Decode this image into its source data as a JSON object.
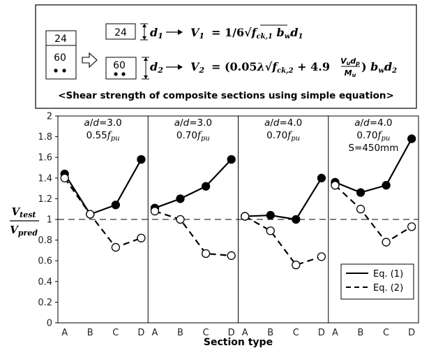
{
  "header_box": {
    "left_blocks": {
      "top": "24",
      "bottom": "60"
    },
    "row1": {
      "block": "24",
      "depth_symbol": "d",
      "depth_index": "1",
      "eq_lhs": "V",
      "eq_lhs_index": "1",
      "formula_text": "= 1/6√f_ck,1 b_w d_1"
    },
    "row2": {
      "block": "60",
      "depth_symbol": "d",
      "depth_index": "2",
      "eq_lhs": "V",
      "eq_lhs_index": "2",
      "formula_text": "= (0.05λ√f_ck,2 + 4.9 V_u d_p / M_u) b_w d_2"
    },
    "caption": "<Shear strength of composite sections using simple equation>"
  },
  "chart_data": {
    "type": "line",
    "categories": [
      "A",
      "B",
      "C",
      "D"
    ],
    "xlabel": "Section type",
    "ylabel": "V_test / V_pred",
    "ylim": [
      0,
      2
    ],
    "yticks": [
      "0",
      "0.2",
      "0.4",
      "0.6",
      "0.8",
      "1",
      "1.2",
      "1.4",
      "1.6",
      "1.8",
      "2"
    ],
    "reference_line": 1.0,
    "legend": {
      "placement": "bottom-right",
      "entries": [
        "Eq. (1)",
        "Eq. (2)"
      ]
    },
    "panels": [
      {
        "label_line1": "a/d=3.0",
        "label_line2": "0.55f_pu",
        "label_line3": "",
        "series": [
          {
            "name": "Eq. (1)",
            "style": "solid",
            "marker": "filled",
            "values": [
              1.44,
              1.05,
              1.14,
              1.58
            ]
          },
          {
            "name": "Eq. (2)",
            "style": "dashed",
            "marker": "open",
            "values": [
              1.4,
              1.05,
              0.73,
              0.82
            ]
          }
        ]
      },
      {
        "label_line1": "a/d=3.0",
        "label_line2": "0.70f_pu",
        "label_line3": "",
        "series": [
          {
            "name": "Eq. (1)",
            "style": "solid",
            "marker": "filled",
            "values": [
              1.11,
              1.2,
              1.32,
              1.58
            ]
          },
          {
            "name": "Eq. (2)",
            "style": "dashed",
            "marker": "open",
            "values": [
              1.08,
              1.0,
              0.67,
              0.65
            ]
          }
        ]
      },
      {
        "label_line1": "a/d=4.0",
        "label_line2": "0.70f_pu",
        "label_line3": "",
        "series": [
          {
            "name": "Eq. (1)",
            "style": "solid",
            "marker": "filled",
            "values": [
              1.03,
              1.04,
              1.0,
              1.4
            ]
          },
          {
            "name": "Eq. (2)",
            "style": "dashed",
            "marker": "open",
            "values": [
              1.03,
              0.89,
              0.56,
              0.64
            ]
          }
        ]
      },
      {
        "label_line1": "a/d=4.0",
        "label_line2": "0.70f_pu",
        "label_line3": "S=450mm",
        "series": [
          {
            "name": "Eq. (1)",
            "style": "solid",
            "marker": "filled",
            "values": [
              1.36,
              1.26,
              1.33,
              1.78
            ]
          },
          {
            "name": "Eq. (2)",
            "style": "dashed",
            "marker": "open",
            "values": [
              1.33,
              1.1,
              0.78,
              0.93
            ]
          }
        ]
      }
    ]
  }
}
